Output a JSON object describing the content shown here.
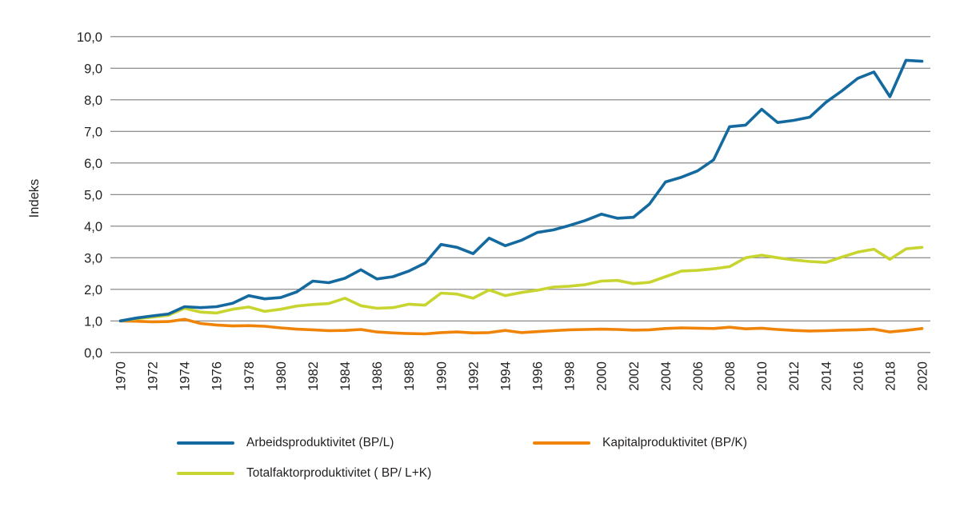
{
  "figure": {
    "background": "#ffffff",
    "text_color": "#231f20",
    "grid_color": "#7f7f7f"
  },
  "chart_data": {
    "type": "line",
    "ylabel": "Indeks",
    "ylim": [
      0,
      10
    ],
    "grid": true,
    "legend_position": "bottom",
    "y_tick_labels": [
      "0,0",
      "1,0",
      "2,0",
      "3,0",
      "4,0",
      "5,0",
      "6,0",
      "7,0",
      "8,0",
      "9,0",
      "10,0"
    ],
    "x_tick_labels": [
      "1970",
      "1972",
      "1974",
      "1976",
      "1978",
      "1980",
      "1982",
      "1984",
      "1986",
      "1988",
      "1990",
      "1992",
      "1994",
      "1996",
      "1998",
      "2000",
      "2002",
      "2004",
      "2006",
      "2008",
      "2010",
      "2012",
      "2014",
      "2016",
      "2018",
      "2020"
    ],
    "x": [
      1970,
      1971,
      1972,
      1973,
      1974,
      1975,
      1976,
      1977,
      1978,
      1979,
      1980,
      1981,
      1982,
      1983,
      1984,
      1985,
      1986,
      1987,
      1988,
      1989,
      1990,
      1991,
      1992,
      1993,
      1994,
      1995,
      1996,
      1997,
      1998,
      1999,
      2000,
      2001,
      2002,
      2003,
      2004,
      2005,
      2006,
      2007,
      2008,
      2009,
      2010,
      2011,
      2012,
      2013,
      2014,
      2015,
      2016,
      2017,
      2018,
      2019,
      2020
    ],
    "series": [
      {
        "name": "Arbeidsproduktivitet (BP/L)",
        "color": "#146a9f",
        "values": [
          1.0,
          1.09,
          1.16,
          1.22,
          1.45,
          1.42,
          1.45,
          1.56,
          1.8,
          1.7,
          1.74,
          1.92,
          2.26,
          2.21,
          2.35,
          2.62,
          2.33,
          2.4,
          2.58,
          2.83,
          3.42,
          3.33,
          3.13,
          3.62,
          3.38,
          3.55,
          3.8,
          3.88,
          4.02,
          4.18,
          4.38,
          4.25,
          4.28,
          4.7,
          5.4,
          5.55,
          5.75,
          6.1,
          7.15,
          7.2,
          7.7,
          7.28,
          7.35,
          7.45,
          7.92,
          8.28,
          8.68,
          8.88,
          8.1,
          9.25,
          9.22
        ]
      },
      {
        "name": "Kapitalproduktivitet (BP/K)",
        "color": "#ef8408",
        "values": [
          1.0,
          0.99,
          0.97,
          0.98,
          1.05,
          0.92,
          0.87,
          0.84,
          0.85,
          0.83,
          0.78,
          0.74,
          0.72,
          0.69,
          0.7,
          0.73,
          0.65,
          0.62,
          0.6,
          0.59,
          0.63,
          0.65,
          0.62,
          0.63,
          0.7,
          0.63,
          0.66,
          0.69,
          0.72,
          0.73,
          0.74,
          0.73,
          0.71,
          0.72,
          0.76,
          0.78,
          0.77,
          0.76,
          0.8,
          0.75,
          0.77,
          0.73,
          0.7,
          0.68,
          0.69,
          0.71,
          0.72,
          0.74,
          0.65,
          0.7,
          0.76
        ]
      },
      {
        "name": "Totalfaktorproduktivitet ( BP/ L+K)",
        "color": "#c8d530",
        "values": [
          1.0,
          1.07,
          1.12,
          1.18,
          1.4,
          1.28,
          1.25,
          1.37,
          1.44,
          1.3,
          1.37,
          1.47,
          1.52,
          1.55,
          1.72,
          1.48,
          1.4,
          1.42,
          1.53,
          1.5,
          1.88,
          1.85,
          1.72,
          1.98,
          1.8,
          1.9,
          1.97,
          2.07,
          2.1,
          2.15,
          2.26,
          2.28,
          2.18,
          2.22,
          2.4,
          2.58,
          2.6,
          2.65,
          2.72,
          3.0,
          3.08,
          3.0,
          2.93,
          2.88,
          2.85,
          3.02,
          3.18,
          3.27,
          2.95,
          3.28,
          3.33
        ]
      }
    ]
  }
}
